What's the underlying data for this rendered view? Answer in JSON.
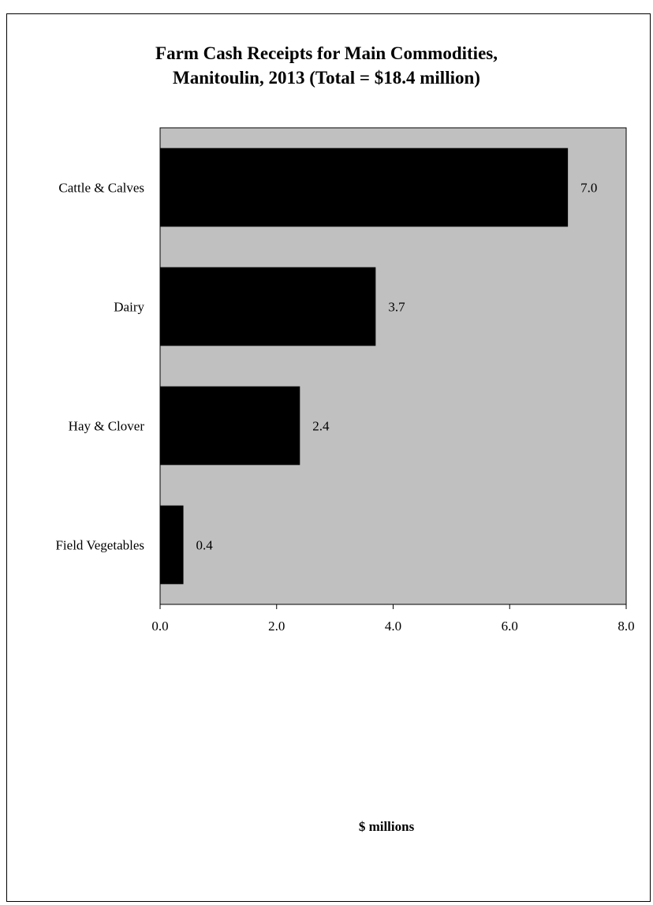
{
  "colors": {
    "plot_background": "#c0c0c0",
    "bar_fill": "#000000",
    "page_background": "#ffffff"
  },
  "chart_data": {
    "type": "bar",
    "orientation": "horizontal",
    "title_line1": "Farm Cash Receipts for Main Commodities,",
    "title_line2": "Manitoulin, 2013 (Total = $18.4 million)",
    "xlabel": "$ millions",
    "ylabel": "",
    "categories": [
      "Cattle & Calves",
      "Dairy",
      "Hay & Clover",
      "Field Vegetables"
    ],
    "values": [
      7.0,
      3.7,
      2.4,
      0.4
    ],
    "data_labels": [
      "7.0",
      "3.7",
      "2.4",
      "0.4"
    ],
    "xlim": [
      0,
      8
    ],
    "xticks": [
      0,
      2,
      4,
      6,
      8
    ],
    "xtick_labels": [
      "0.0",
      "2.0",
      "4.0",
      "6.0",
      "8.0"
    ],
    "grid": false,
    "legend": "none"
  }
}
